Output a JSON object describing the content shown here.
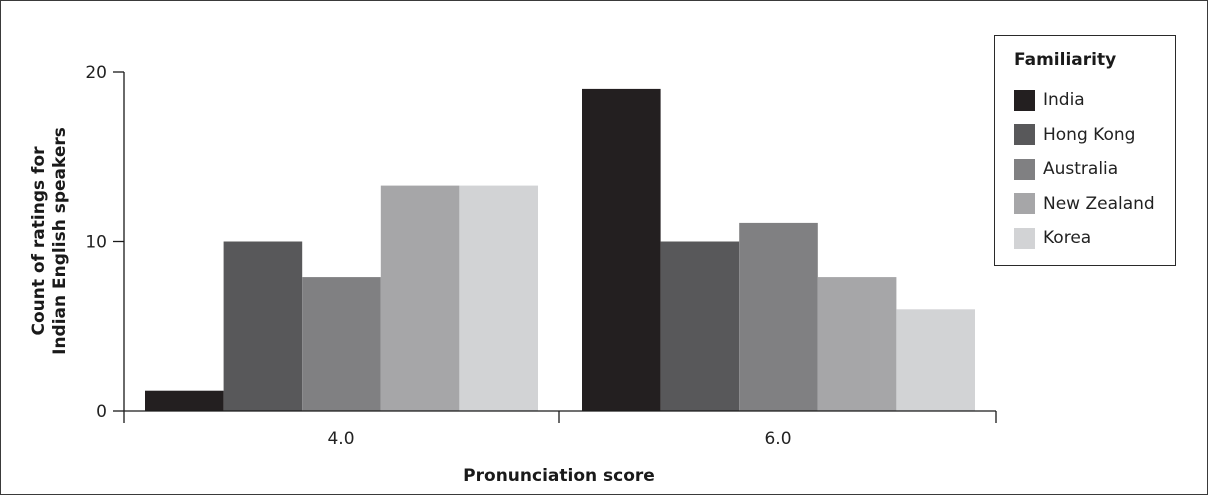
{
  "chart_data": {
    "type": "bar",
    "categories": [
      "4.0",
      "6.0"
    ],
    "series": [
      {
        "name": "India",
        "values": [
          1.2,
          19.0
        ],
        "color": "#231f20"
      },
      {
        "name": "Hong Kong",
        "values": [
          10.0,
          10.0
        ],
        "color": "#58585a"
      },
      {
        "name": "Australia",
        "values": [
          7.9,
          11.1
        ],
        "color": "#808082"
      },
      {
        "name": "New Zealand",
        "values": [
          13.3,
          7.9
        ],
        "color": "#a6a6a8"
      },
      {
        "name": "Korea",
        "values": [
          13.3,
          6.0
        ],
        "color": "#d2d3d5"
      }
    ],
    "xlabel": "Pronunciation score",
    "ylabel_lines": [
      "Count of ratings for",
      "Indian English speakers"
    ],
    "yticks": [
      "0",
      "10",
      "20"
    ],
    "ylim": [
      0,
      20
    ],
    "legend_title": "Familiarity",
    "legend_position": "top-right",
    "grid": false
  }
}
